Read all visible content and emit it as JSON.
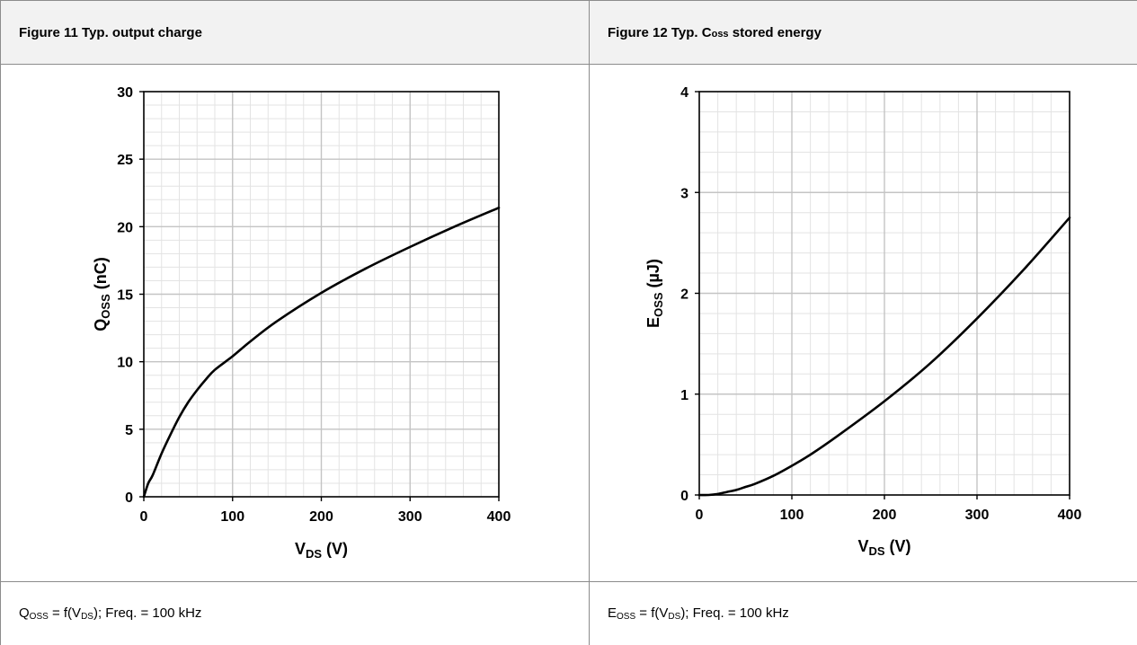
{
  "panels": [
    {
      "id": "fig11",
      "header": {
        "figure_label": "Figure 11",
        "title": "Typ. output charge"
      },
      "footer": {
        "prefix": "Q",
        "prefix_sub": "OSS",
        "mid": " = f(V",
        "mid_sub": "DS",
        "suffix": "); Freq. = 100 kHz"
      }
    },
    {
      "id": "fig12",
      "header": {
        "figure_label": "Figure 12",
        "title_prefix": "Typ. C",
        "title_sub": "oss",
        "title_suffix": " stored energy"
      },
      "footer": {
        "prefix": "E",
        "prefix_sub": "OSS",
        "mid": " = f(V",
        "mid_sub": "DS",
        "suffix": "); Freq. = 100 kHz"
      }
    }
  ],
  "chart_data": [
    {
      "type": "line",
      "xlabel": "V",
      "xlabel_sub": "DS",
      "xlabel_unit": " (V)",
      "ylabel": "Q",
      "ylabel_sub": "OSS",
      "ylabel_unit": " (nC)",
      "xlim": [
        0,
        400
      ],
      "ylim": [
        0,
        30
      ],
      "xticks": [
        0,
        100,
        200,
        300,
        400
      ],
      "yticks": [
        0,
        5,
        10,
        15,
        20,
        25,
        30
      ],
      "minor_x_step": 20,
      "minor_y_step": 1,
      "grid": true,
      "series": [
        {
          "x": [
            0,
            5,
            10,
            20,
            30,
            40,
            50,
            60,
            70,
            80,
            100,
            120,
            150,
            200,
            250,
            300,
            350,
            400
          ],
          "y": [
            0,
            1.0,
            1.6,
            3.2,
            4.6,
            5.9,
            7.0,
            7.9,
            8.7,
            9.4,
            10.4,
            11.5,
            13.0,
            15.1,
            16.9,
            18.5,
            20.0,
            21.4
          ]
        }
      ]
    },
    {
      "type": "line",
      "xlabel": "V",
      "xlabel_sub": "DS",
      "xlabel_unit": " (V)",
      "ylabel": "E",
      "ylabel_sub": "OSS",
      "ylabel_unit": " (µJ)",
      "xlim": [
        0,
        400
      ],
      "ylim": [
        0,
        4
      ],
      "xticks": [
        0,
        100,
        200,
        300,
        400
      ],
      "yticks": [
        0,
        1,
        2,
        3,
        4
      ],
      "minor_x_step": 20,
      "minor_y_step": 0.2,
      "grid": true,
      "series": [
        {
          "x": [
            0,
            10,
            20,
            30,
            40,
            50,
            60,
            80,
            100,
            120,
            150,
            200,
            250,
            300,
            350,
            400
          ],
          "y": [
            0,
            0.0,
            0.01,
            0.03,
            0.05,
            0.08,
            0.11,
            0.19,
            0.29,
            0.4,
            0.59,
            0.93,
            1.31,
            1.75,
            2.23,
            2.75
          ]
        }
      ]
    }
  ]
}
